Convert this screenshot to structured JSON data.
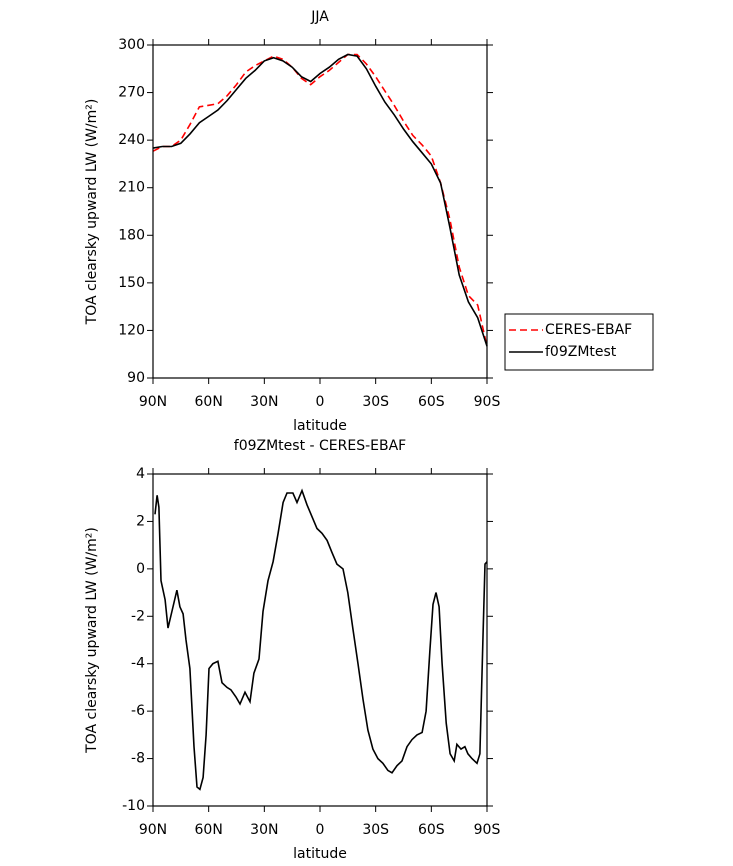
{
  "chart_data": [
    {
      "type": "line",
      "title": "JJA",
      "x_label": "latitude",
      "y_label": "TOA clearsky upward LW (W/m²)",
      "x": [
        90,
        85,
        80,
        75,
        70,
        65,
        60,
        55,
        50,
        45,
        40,
        35,
        30,
        25,
        20,
        15,
        10,
        5,
        0,
        -5,
        -10,
        -15,
        -20,
        -25,
        -30,
        -35,
        -40,
        -45,
        -50,
        -55,
        -60,
        -65,
        -70,
        -75,
        -80,
        -85,
        -90
      ],
      "series": [
        {
          "name": "CERES-EBAF",
          "color": "#ff0000",
          "dash": "dashed",
          "values": [
            233,
            236,
            236,
            240,
            250,
            261,
            262,
            263,
            268,
            275,
            283,
            287,
            290,
            293,
            291,
            286,
            279,
            275,
            280,
            284,
            289,
            294,
            294,
            288,
            280,
            271,
            262,
            252,
            243,
            237,
            230,
            213,
            190,
            160,
            142,
            136,
            110
          ]
        },
        {
          "name": "f09ZMtest",
          "color": "#000000",
          "dash": "solid",
          "values": [
            235,
            236,
            236,
            238,
            244,
            251,
            255,
            259,
            265,
            272,
            279,
            284,
            290,
            292,
            290,
            286,
            280,
            277,
            282,
            286,
            291,
            294,
            293,
            285,
            274,
            264,
            256,
            247,
            239,
            232,
            225,
            213,
            185,
            155,
            138,
            128,
            110
          ]
        }
      ],
      "xlim": [
        90,
        -90
      ],
      "xticks": [
        {
          "value": 90,
          "label": "90N"
        },
        {
          "value": 60,
          "label": "60N"
        },
        {
          "value": 30,
          "label": "30N"
        },
        0,
        {
          "value": -30,
          "label": "30S"
        },
        {
          "value": -60,
          "label": "60S"
        },
        {
          "value": -90,
          "label": "90S"
        }
      ],
      "ylim": [
        90,
        300
      ],
      "yticks": [
        90,
        120,
        150,
        180,
        210,
        240,
        270,
        300
      ],
      "legend": "outside-right"
    },
    {
      "type": "line",
      "title": "f09ZMtest - CERES-EBAF",
      "x_label": "latitude",
      "y_label": "TOA clearsky upward LW (W/m²)",
      "x": [
        88.9,
        87.8,
        86.8,
        85.7,
        83.5,
        81.9,
        79.8,
        77.1,
        75.5,
        73.8,
        72.2,
        70.1,
        67.9,
        66.3,
        64.7,
        63.0,
        61.4,
        59.8,
        57.7,
        55.0,
        52.8,
        50.1,
        48.0,
        45.3,
        43.1,
        40.4,
        37.7,
        35.6,
        32.9,
        30.7,
        28.0,
        25.3,
        22.6,
        19.9,
        17.8,
        14.6,
        12.4,
        9.7,
        7.0,
        4.3,
        1.6,
        -1.1,
        -3.8,
        -6.4,
        -9.1,
        -12.4,
        -15.0,
        -17.7,
        -20.5,
        -23.2,
        -25.8,
        -28.5,
        -31.2,
        -33.9,
        -36.6,
        -38.8,
        -41.5,
        -44.2,
        -46.9,
        -49.6,
        -52.3,
        -55.0,
        -57.2,
        -59.2,
        -60.9,
        -62.5,
        -64.2,
        -65.8,
        -68.0,
        -70.1,
        -72.3,
        -73.8,
        -76.0,
        -78.1,
        -79.7,
        -81.9,
        -84.6,
        -86.2,
        -87.8,
        -88.9,
        -90.0
      ],
      "values": [
        2.3,
        3.1,
        2.6,
        -0.5,
        -1.3,
        -2.5,
        -1.8,
        -0.9,
        -1.6,
        -1.9,
        -3.0,
        -4.2,
        -7.5,
        -9.2,
        -9.3,
        -8.8,
        -7.0,
        -4.2,
        -4.0,
        -3.9,
        -4.8,
        -5.0,
        -5.1,
        -5.4,
        -5.7,
        -5.2,
        -5.6,
        -4.4,
        -3.8,
        -1.8,
        -0.5,
        0.3,
        1.5,
        2.8,
        3.2,
        3.2,
        2.8,
        3.3,
        2.7,
        2.2,
        1.7,
        1.5,
        1.2,
        0.7,
        0.2,
        0.0,
        -1.0,
        -2.5,
        -4.0,
        -5.5,
        -6.8,
        -7.6,
        -8.0,
        -8.2,
        -8.5,
        -8.6,
        -8.3,
        -8.1,
        -7.5,
        -7.2,
        -7.0,
        -6.9,
        -6.0,
        -3.5,
        -1.5,
        -1.0,
        -1.6,
        -4.0,
        -6.5,
        -7.8,
        -8.1,
        -7.4,
        -7.6,
        -7.5,
        -7.8,
        -8.0,
        -8.2,
        -7.8,
        -3.0,
        0.2,
        0.3
      ],
      "color": "#000000",
      "xlim": [
        90,
        -90
      ],
      "xticks": [
        {
          "value": 90,
          "label": "90N"
        },
        {
          "value": 60,
          "label": "60N"
        },
        {
          "value": 30,
          "label": "30N"
        },
        0,
        {
          "value": -30,
          "label": "30S"
        },
        {
          "value": -60,
          "label": "60S"
        },
        {
          "value": -90,
          "label": "90S"
        }
      ],
      "ylim": [
        -10,
        4
      ],
      "yticks": [
        -10,
        -8,
        -6,
        -4,
        -2,
        0,
        2,
        4
      ]
    }
  ]
}
